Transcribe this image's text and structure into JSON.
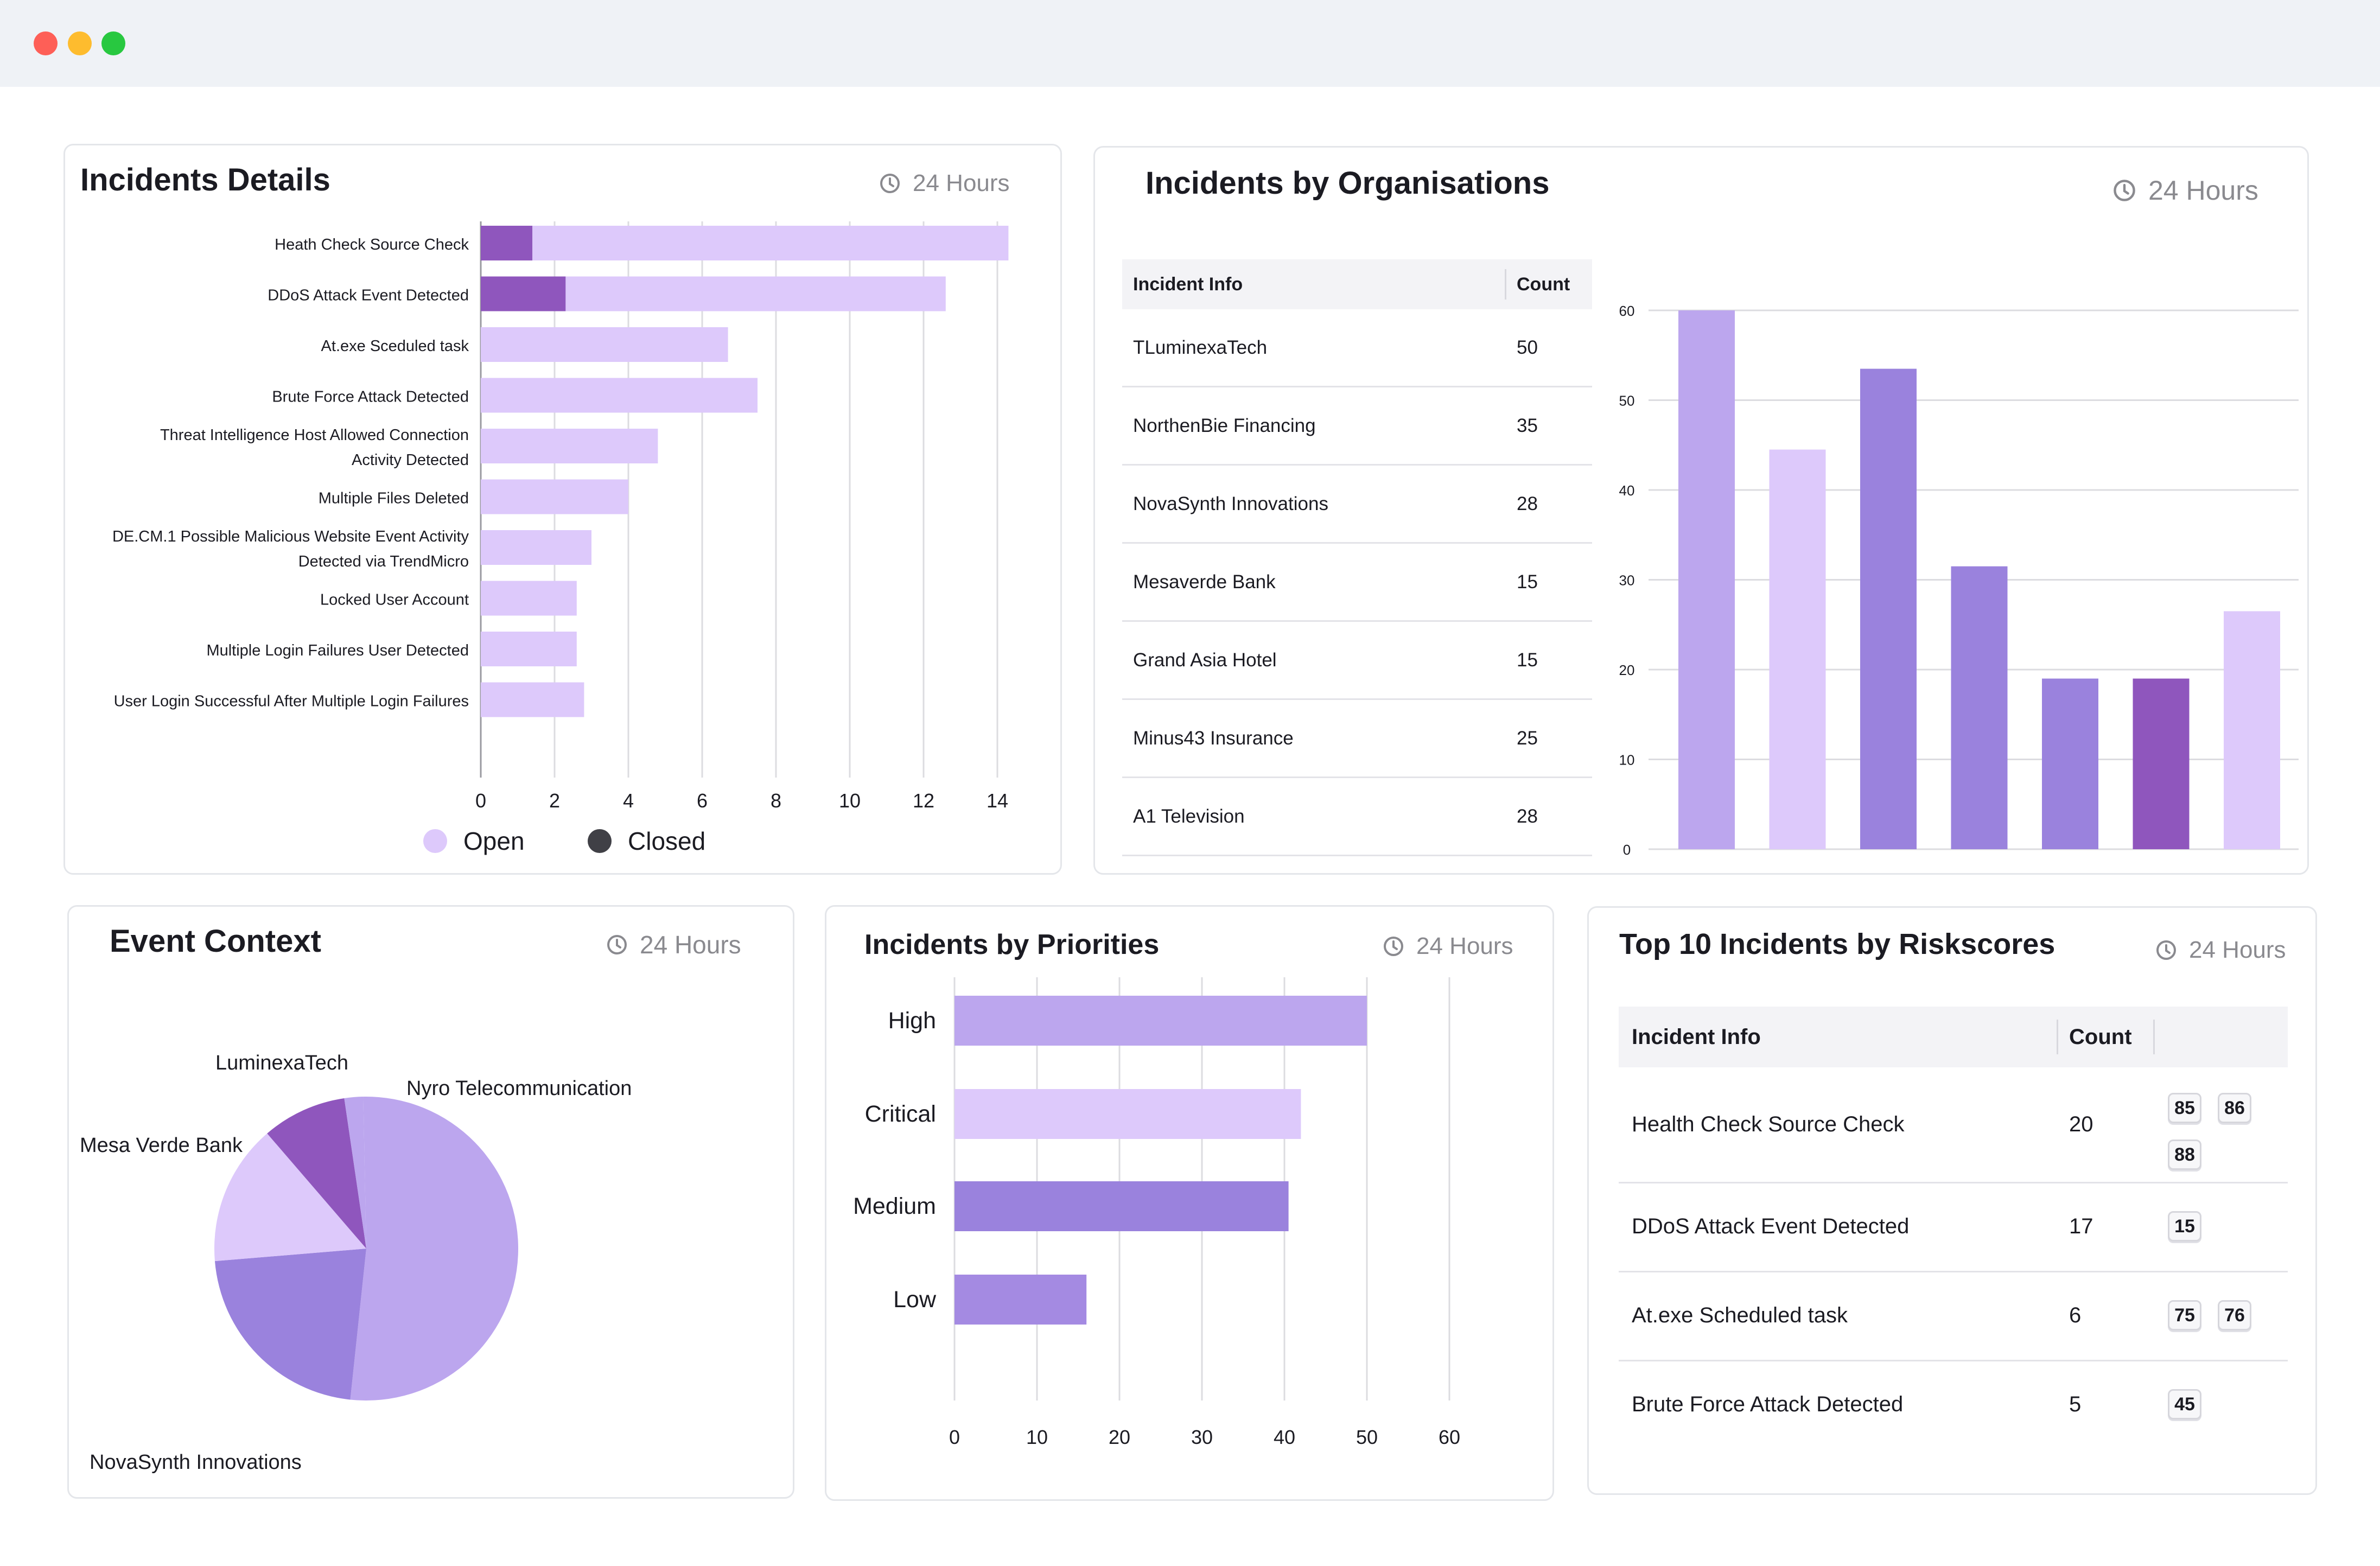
{
  "window": {
    "controls": [
      "close",
      "minimize",
      "maximize"
    ]
  },
  "colors": {
    "light": "#ddc9fb",
    "medium": "#bca6ee",
    "mid": "#9a82dd",
    "dark": "#8f56bd",
    "closed_legend": "#404046"
  },
  "incident_details": {
    "title": "Incidents Details",
    "period": "24 Hours",
    "legend": {
      "open": "Open",
      "closed": "Closed"
    },
    "chart_data": {
      "type": "bar",
      "orientation": "horizontal",
      "stacked": true,
      "categories": [
        [
          "Heath Check Source Check"
        ],
        [
          "DDoS Attack Event Detected"
        ],
        [
          "At.exe Sceduled task"
        ],
        [
          "Brute Force Attack Detected"
        ],
        [
          "Threat Intelligence Host Allowed Connection",
          "Activity Detected"
        ],
        [
          "Multiple Files Deleted"
        ],
        [
          "DE.CM.1 Possible Malicious Website Event Activity",
          "Detected via TrendMicro"
        ],
        [
          "Locked User Account"
        ],
        [
          "Multiple Login Failures User Detected"
        ],
        [
          "User Login Successful After Multiple Login Failures"
        ]
      ],
      "series": [
        {
          "name": "Closed",
          "values": [
            1.4,
            2.3,
            0,
            0,
            0,
            0,
            0,
            0,
            0,
            0
          ]
        },
        {
          "name": "Open",
          "values": [
            12.9,
            10.3,
            6.7,
            7.5,
            4.8,
            4.0,
            3.0,
            2.6,
            2.6,
            2.8
          ]
        }
      ],
      "x_ticks": [
        "0",
        "2",
        "4",
        "6",
        "8",
        "10",
        "12",
        "14"
      ],
      "xlim": [
        0,
        14
      ],
      "grid": true
    }
  },
  "organisations": {
    "title": "Incidents by Organisations",
    "period": "24 Hours",
    "table": {
      "headers": [
        "Incident Info",
        "Count"
      ],
      "rows": [
        {
          "name": "TLuminexaTech",
          "count": "50"
        },
        {
          "name": "NorthenBie Financing",
          "count": "35"
        },
        {
          "name": "NovaSynth Innovations",
          "count": "28"
        },
        {
          "name": "Mesaverde Bank",
          "count": "15"
        },
        {
          "name": "Grand Asia Hotel",
          "count": "15"
        },
        {
          "name": "Minus43 Insurance",
          "count": "25"
        },
        {
          "name": "A1 Television",
          "count": "28"
        }
      ]
    },
    "chart_data": {
      "type": "bar",
      "values": [
        60,
        44.5,
        53.5,
        31.5,
        19,
        19,
        26.5
      ],
      "bar_colors": [
        "#bca6ee",
        "#ddc9fb",
        "#9a82dd",
        "#9a82dd",
        "#9a82dd",
        "#8f56bd",
        "#ddc9fb"
      ],
      "y_ticks": [
        "0",
        "10",
        "20",
        "30",
        "40",
        "50",
        "60"
      ],
      "ylim": [
        0,
        60
      ],
      "grid": true
    }
  },
  "event_context": {
    "title": "Event Context",
    "period": "24 Hours",
    "chart_data": {
      "type": "pie",
      "slices": [
        {
          "label": "Nyro Telecommunication",
          "value": 52,
          "color": "#bca6ee"
        },
        {
          "label": "NovaSynth Innovations",
          "value": 22,
          "color": "#9a82dd"
        },
        {
          "label": "Mesa Verde Bank",
          "value": 15,
          "color": "#ddc9fb"
        },
        {
          "label": "LuminexaTech",
          "value": 9,
          "color": "#8f56bd"
        },
        {
          "label": "",
          "value": 2,
          "color": "#bca6ee"
        }
      ]
    }
  },
  "priorities": {
    "title": "Incidents by Priorities",
    "period": "24 Hours",
    "chart_data": {
      "type": "bar",
      "orientation": "horizontal",
      "categories": [
        "High",
        "Critical",
        "Medium",
        "Low"
      ],
      "values": [
        50,
        42,
        40.5,
        16
      ],
      "bar_colors": [
        "#bca6ee",
        "#ddc9fb",
        "#9a82dd",
        "#a48ae2"
      ],
      "x_ticks": [
        "0",
        "10",
        "20",
        "30",
        "40",
        "50",
        "60"
      ],
      "xlim": [
        0,
        60
      ],
      "grid": true
    }
  },
  "riskscores": {
    "title": "Top 10 Incidents by Riskscores",
    "period": "24 Hours",
    "table": {
      "headers": [
        "Incident Info",
        "Count"
      ],
      "rows": [
        {
          "name": "Health Check Source Check",
          "count": "20",
          "scores": [
            "85",
            "86",
            "88"
          ]
        },
        {
          "name": "DDoS Attack Event Detected",
          "count": "17",
          "scores": [
            "15"
          ]
        },
        {
          "name": "At.exe Scheduled task",
          "count": "6",
          "scores": [
            "75",
            "76"
          ]
        },
        {
          "name": "Brute Force Attack Detected",
          "count": "5",
          "scores": [
            "45"
          ]
        }
      ]
    }
  }
}
